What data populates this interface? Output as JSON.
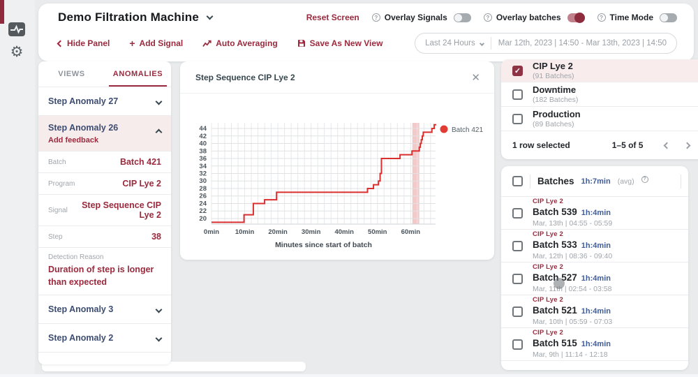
{
  "app": {
    "accent": "#9a2a3d",
    "chart_red": "#d92f2f"
  },
  "header": {
    "title": "Demo Filtration Machine",
    "reset": "Reset Screen",
    "toggles": [
      {
        "label": "Overlay Signals",
        "on": false
      },
      {
        "label": "Overlay batches",
        "on": true
      },
      {
        "label": "Time Mode",
        "on": false
      }
    ],
    "toolbar": {
      "hide_panel": "Hide Panel",
      "add_signal": "Add Signal",
      "auto_averaging": "Auto Averaging",
      "save_view": "Save As New View"
    },
    "time_range": {
      "preset": "Last 24 Hours",
      "range": "Mar 12th, 2023 | 14:50  -  Mar 13th, 2023 | 14:50"
    }
  },
  "left_panel": {
    "tabs": [
      {
        "label": "VIEWS",
        "active": false
      },
      {
        "label": "ANOMALIES",
        "active": true
      }
    ],
    "anomaly_top": {
      "label": "Step Anomaly 27"
    },
    "expanded": {
      "label": "Step Anomaly 26",
      "action": "Add feedback"
    },
    "details": [
      {
        "label": "Batch",
        "value": "Batch 421"
      },
      {
        "label": "Program",
        "value": "CIP Lye 2"
      },
      {
        "label": "Signal",
        "value": "Step Sequence CIP Lye 2"
      },
      {
        "label": "Step",
        "value": "38"
      },
      {
        "label": "Detection Reason",
        "value": "Duration of step is longer than expected"
      }
    ],
    "anomaly_bottom": [
      {
        "label": "Step Anomaly 3"
      },
      {
        "label": "Step Anomaly 2"
      }
    ]
  },
  "chart_card": {
    "title": "Step Sequence CIP Lye 2",
    "close": "✕"
  },
  "chart_data": {
    "type": "line",
    "mode": "step",
    "title": "Step Sequence CIP Lye 2",
    "xlabel": "Minutes since start of batch",
    "x_unit": "min",
    "xlim": [
      0,
      67.5
    ],
    "xticks": [
      0,
      10,
      20,
      30,
      40,
      50,
      60
    ],
    "x_minor_step": 2,
    "ylim": [
      18.5,
      45.5
    ],
    "yticks": [
      20,
      22,
      24,
      26,
      28,
      30,
      32,
      34,
      36,
      38,
      40,
      42,
      44
    ],
    "grid": true,
    "legend": [
      {
        "name": "Batch 421",
        "color": "#e23b34"
      }
    ],
    "anomaly_band": {
      "x0": 60.5,
      "x1": 62.6,
      "color": "#f3caca"
    },
    "series": [
      {
        "name": "Batch 421",
        "color": "#d92f2f",
        "segments": [
          [
            0,
            9.8,
            19
          ],
          [
            9.8,
            12.6,
            21
          ],
          [
            12.6,
            16,
            24
          ],
          [
            16,
            19.6,
            25
          ],
          [
            19.6,
            47,
            27
          ],
          [
            47,
            48.8,
            28
          ],
          [
            48.8,
            50.3,
            29
          ],
          [
            50.3,
            50.8,
            30
          ],
          [
            50.8,
            51.2,
            32
          ],
          [
            51.2,
            56.8,
            36
          ],
          [
            56.8,
            60.4,
            37
          ],
          [
            60.4,
            62.6,
            38
          ],
          [
            62.6,
            62.9,
            39
          ],
          [
            62.9,
            63.2,
            40
          ],
          [
            63.2,
            63.5,
            41
          ],
          [
            63.5,
            63.8,
            42
          ],
          [
            63.8,
            66.4,
            43
          ],
          [
            66.4,
            67.1,
            44
          ],
          [
            67.1,
            67.8,
            45
          ]
        ]
      }
    ]
  },
  "batch_types": {
    "rows": [
      {
        "name": "CIP Lye 2",
        "count": "(91 Batches)",
        "checked": true
      },
      {
        "name": "Downtime",
        "count": "(182 Batches)",
        "checked": false
      },
      {
        "name": "Production",
        "count": "(89 Batches)",
        "checked": false
      }
    ],
    "footer": {
      "selected": "1 row selected",
      "page": "1–5 of 5"
    }
  },
  "batches": {
    "header": {
      "title": "Batches",
      "avg_duration": "1h:7min",
      "avg_label": "(avg)"
    },
    "rows": [
      {
        "program": "CIP Lye 2",
        "name": "Batch 539",
        "duration": "1h:4min",
        "time": "Mar, 13th | 04:55 - 05:59"
      },
      {
        "program": "CIP Lye 2",
        "name": "Batch 533",
        "duration": "1h:4min",
        "time": "Mar, 12th | 08:36 - 09:40"
      },
      {
        "program": "CIP Lye 2",
        "name": "Batch 527",
        "duration": "1h:4min",
        "time": "Mar, 11th | 02:54 - 03:58"
      },
      {
        "program": "CIP Lye 2",
        "name": "Batch 521",
        "duration": "1h:4min",
        "time": "Mar, 10th | 05:59 - 07:03"
      },
      {
        "program": "CIP Lye 2",
        "name": "Batch 515",
        "duration": "1h:4min",
        "time": "Mar, 9th | 11:14 - 12:18"
      }
    ]
  }
}
